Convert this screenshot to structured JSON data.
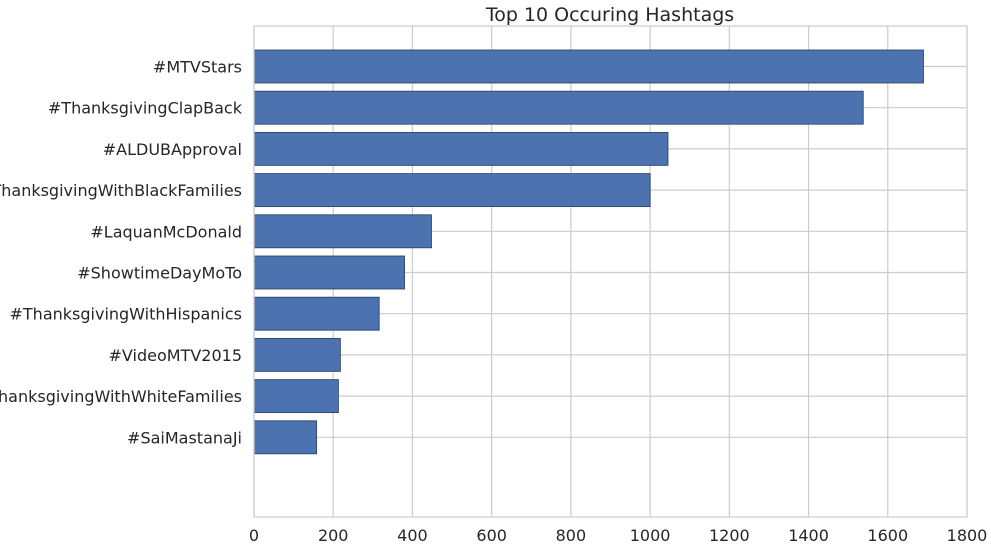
{
  "chart_data": {
    "type": "bar",
    "orientation": "horizontal",
    "title": "Top 10 Occuring Hashtags",
    "xlabel": "",
    "ylabel": "",
    "xlim": [
      0,
      1800
    ],
    "xticks": [
      "0",
      "200",
      "400",
      "600",
      "800",
      "1000",
      "1200",
      "1400",
      "1600",
      "1800"
    ],
    "grid": true,
    "categories": [
      "#MTVStars",
      "#ThanksgivingClapBack",
      "#ALDUBApproval",
      "#ThanksgivingWithBlackFamilies",
      "#LaquanMcDonald",
      "#ShowtimeDayMoTo",
      "#ThanksgivingWithHispanics",
      "#VideoMTV2015",
      "#ThanksgivingWithWhiteFamilies",
      "#SaiMastanaJi"
    ],
    "values": [
      1690,
      1538,
      1045,
      1000,
      448,
      380,
      316,
      218,
      213,
      158
    ],
    "bar_color": "#4c72b0"
  }
}
